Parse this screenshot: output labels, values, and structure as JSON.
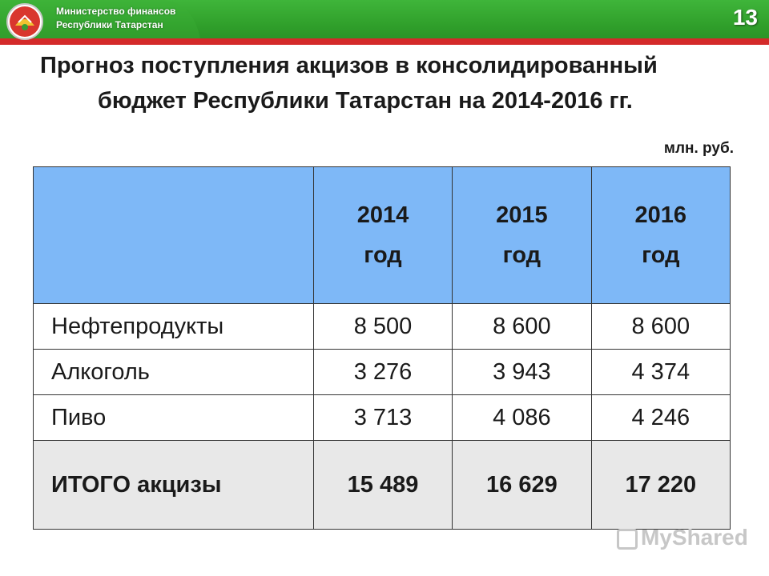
{
  "header": {
    "ministry_line1": "Министерство финансов",
    "ministry_line2": "Республики Татарстан",
    "slide_number": "13"
  },
  "title": {
    "line1": "Прогноз поступления акцизов в консолидированный",
    "line2": "бюджет Республики Татарстан на 2014-2016 гг."
  },
  "unit": "млн. руб.",
  "table": {
    "columns": [
      {
        "line1": "2014",
        "line2": "год"
      },
      {
        "line1": "2015",
        "line2": "год"
      },
      {
        "line1": "2016",
        "line2": "год"
      }
    ],
    "rows": [
      {
        "name": "Нефтепродукты",
        "values": [
          "8 500",
          "8 600",
          "8 600"
        ]
      },
      {
        "name": "Алкоголь",
        "values": [
          "3 276",
          "3 943",
          "4 374"
        ]
      },
      {
        "name": "Пиво",
        "values": [
          "3 713",
          "4 086",
          "4 246"
        ]
      }
    ],
    "total": {
      "name": "ИТОГО акцизы",
      "values": [
        "15 489",
        "16 629",
        "17 220"
      ]
    }
  },
  "watermark": "MyShared",
  "colors": {
    "header_green": "#2f9e2a",
    "header_red": "#d42a2a",
    "table_header_blue": "#7eb8f7",
    "total_row_gray": "#e8e8e8"
  }
}
